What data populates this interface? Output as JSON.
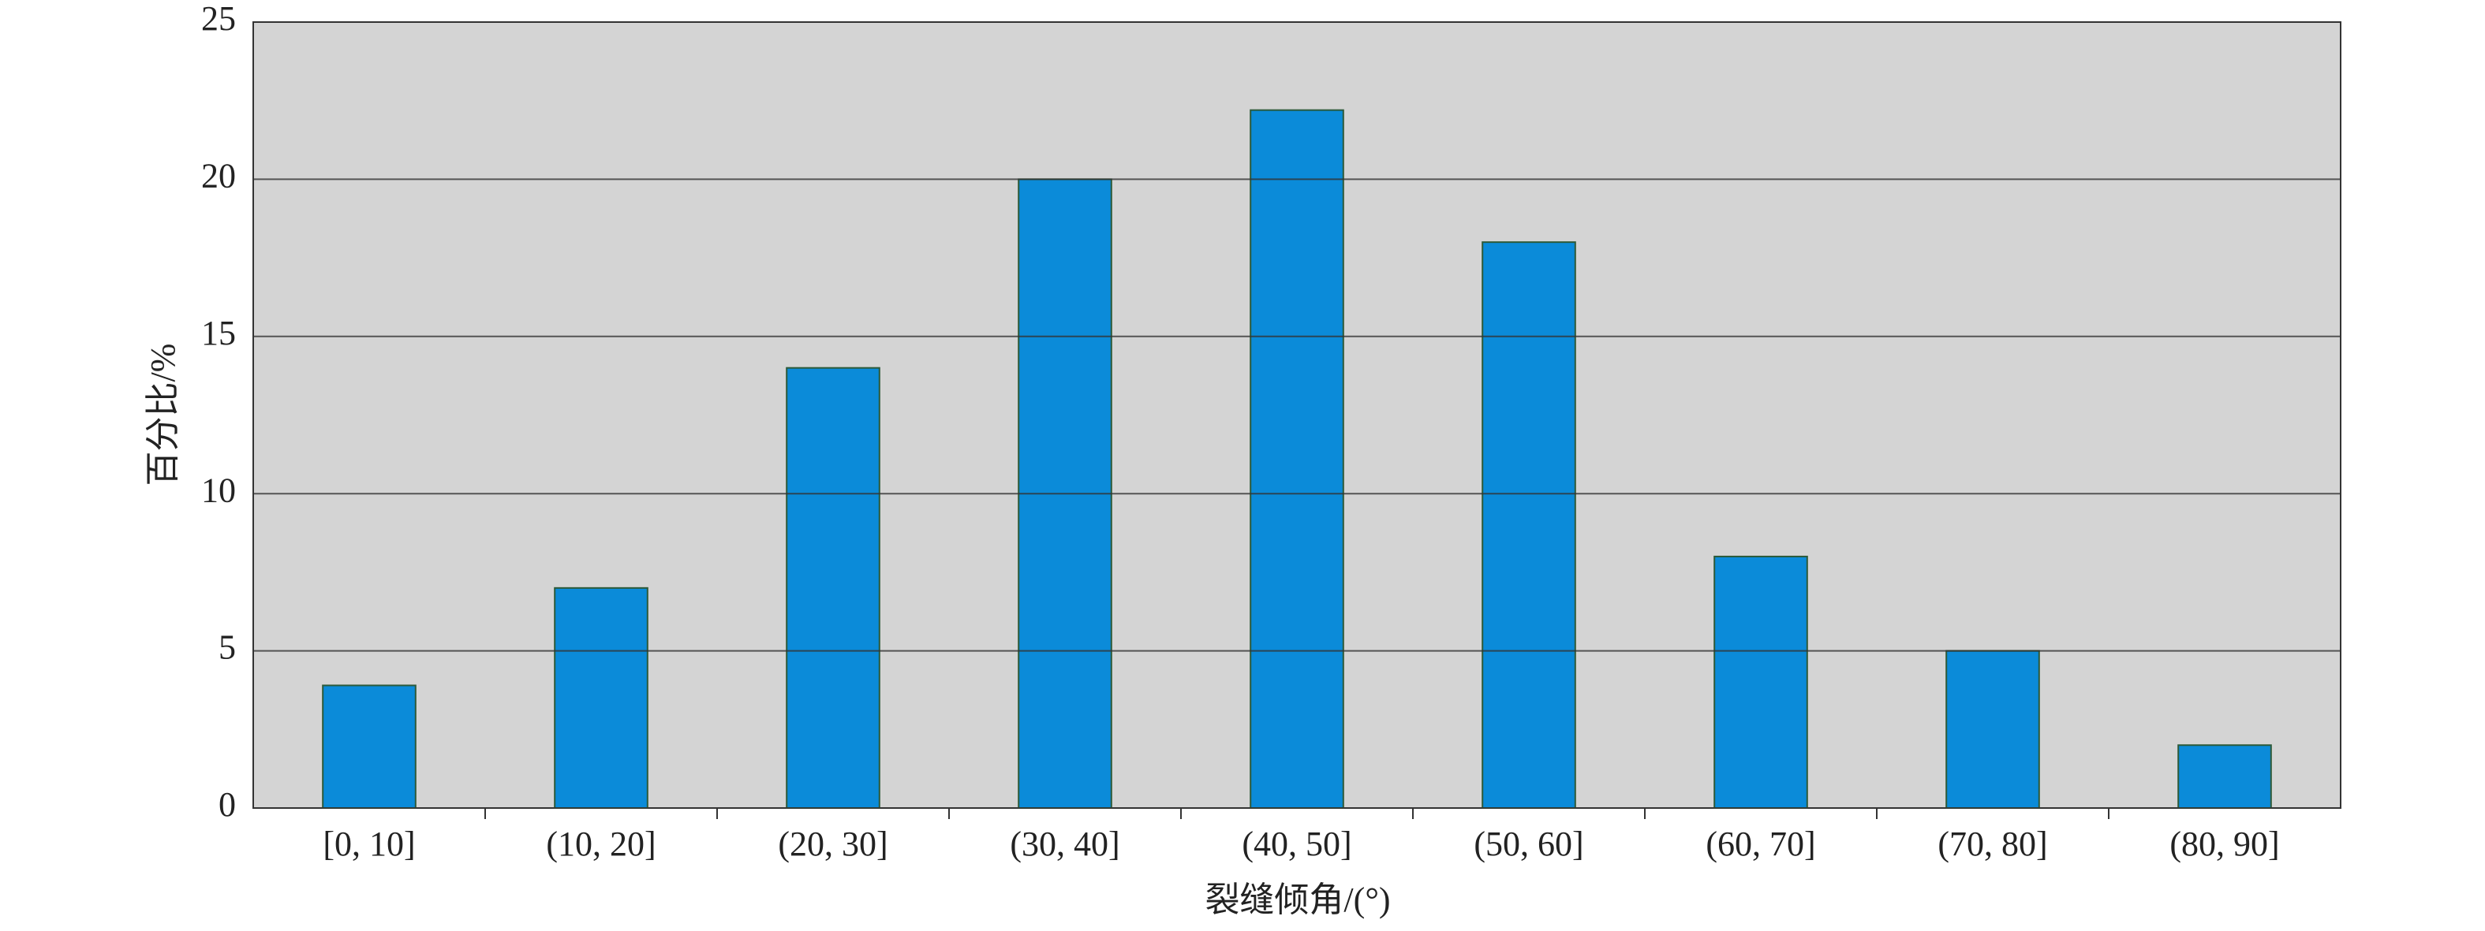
{
  "chart_data": {
    "type": "bar",
    "categories": [
      "[0, 10]",
      "(10, 20]",
      "(20, 30]",
      "(30, 40]",
      "(40, 50]",
      "(50, 60]",
      "(60, 70]",
      "(70, 80]",
      "(80, 90]"
    ],
    "values": [
      3.9,
      7,
      14,
      20,
      22.2,
      18,
      8,
      5,
      2
    ],
    "color": "#0b8bd9",
    "ylim": [
      0,
      25
    ],
    "yticks": [
      0,
      5,
      10,
      15,
      20,
      25
    ],
    "grid": true,
    "xlabel": "裂缝倾角/(°)",
    "ylabel": "百分比/%"
  }
}
